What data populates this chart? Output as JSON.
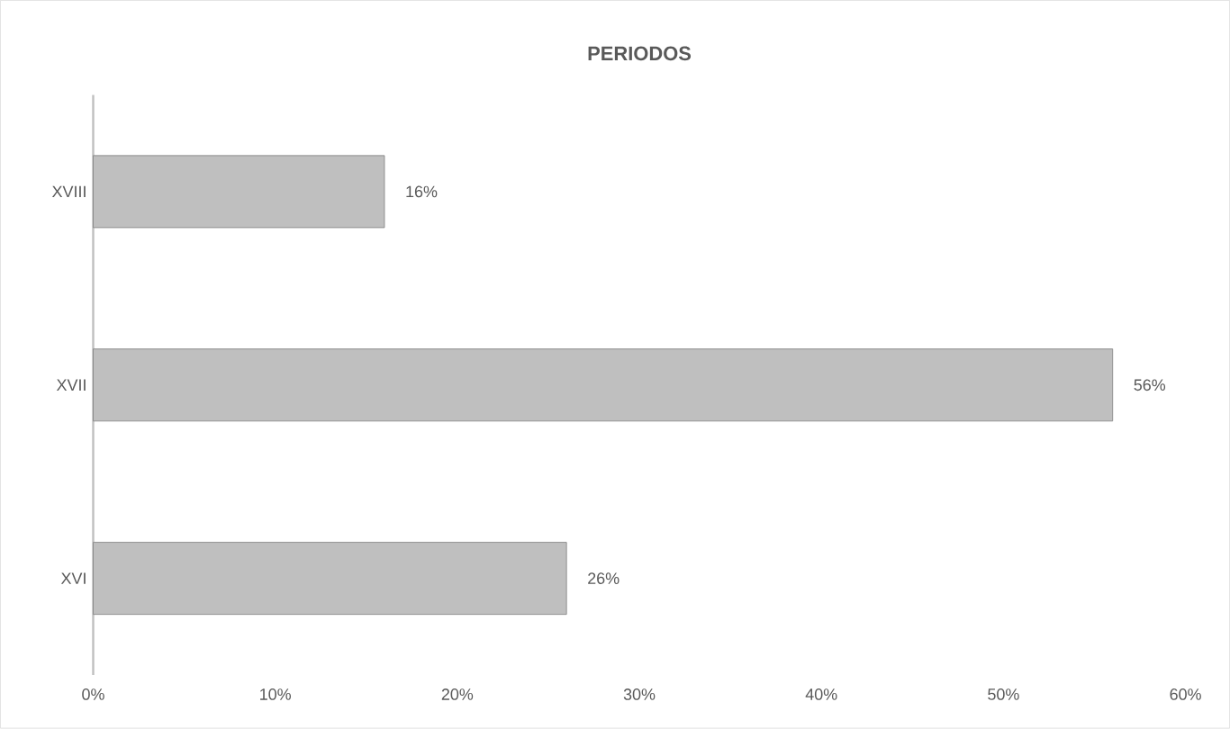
{
  "chart_data": {
    "type": "bar",
    "orientation": "horizontal",
    "title": "PERIODOS",
    "categories": [
      "XVIII",
      "XVII",
      "XVI"
    ],
    "values": [
      16,
      56,
      26
    ],
    "value_labels": [
      "16%",
      "56%",
      "26%"
    ],
    "color": "#bfbfbf",
    "xlim": [
      0,
      60
    ],
    "xticks": [
      {
        "value": 0,
        "label": "0%"
      },
      {
        "value": 10,
        "label": "10%"
      },
      {
        "value": 20,
        "label": "20%"
      },
      {
        "value": 30,
        "label": "30%"
      },
      {
        "value": 40,
        "label": "40%"
      },
      {
        "value": 50,
        "label": "50%"
      },
      {
        "value": 60,
        "label": "60%"
      }
    ],
    "grid": false
  }
}
